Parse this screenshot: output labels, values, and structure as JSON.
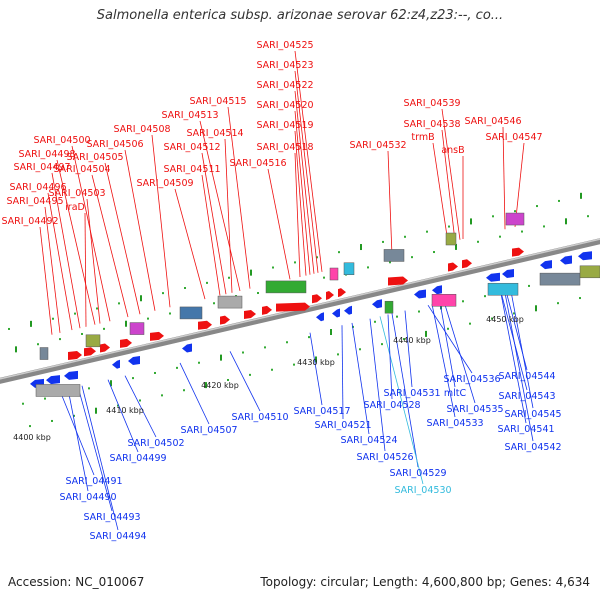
{
  "title": "Salmonella enterica subsp. arizonae serovar 62:z4,z23:--, co...",
  "footer": {
    "accession": "Accession: NC_010067",
    "summary": "Topology: circular; Length: 4,600,800 bp; Genes: 4,634"
  },
  "colors": {
    "forward": "#ee1111",
    "reverse": "#1133ee",
    "highlight": "#33bbdd",
    "backbone": "#888888"
  },
  "kbp_ticks": [
    "4400 kbp",
    "4410 kbp",
    "4420 kbp",
    "4430 kbp",
    "4440 kbp",
    "4450 kbp"
  ],
  "top_labels": [
    "SARI_04525",
    "SARI_04523",
    "SARI_04522",
    "SARI_04520",
    "SARI_04519",
    "SARI_04518",
    "SARI_04516",
    "SARI_04515",
    "SARI_04513",
    "SARI_04514",
    "SARI_04512",
    "SARI_04511",
    "SARI_04509",
    "SARI_04508",
    "SARI_04506",
    "SARI_04505",
    "SARI_04504",
    "SARI_04503",
    "SARI_04500",
    "SARI_04498",
    "SARI_04497",
    "SARI_04496",
    "SARI_04495",
    "iraD",
    "SARI_04492",
    "SARI_04539",
    "SARI_04538",
    "trmB",
    "ansB",
    "SARI_04532",
    "SARI_04546",
    "SARI_04547"
  ],
  "bottom_labels": [
    "SARI_04510",
    "SARI_04507",
    "SARI_04502",
    "SARI_04499",
    "SARI_04491",
    "SARI_04490",
    "SARI_04493",
    "SARI_04494",
    "SARI_04517",
    "SARI_04521",
    "SARI_04524",
    "SARI_04526",
    "SARI_04529",
    "SARI_04530",
    "SARI_04528",
    "SARI_04531",
    "SARI_04533",
    "mltC",
    "SARI_04535",
    "SARI_04536",
    "SARI_04544",
    "SARI_04543",
    "SARI_04545",
    "SARI_04541",
    "SARI_04542"
  ]
}
